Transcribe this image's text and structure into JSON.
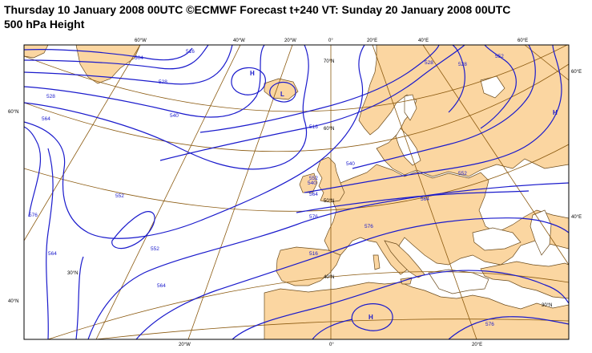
{
  "header": {
    "line1": "Thursday 10 January 2008 00UTC ©ECMWF Forecast t+240 VT: Sunday 20 January 2008 00UTC",
    "line2": "500 hPa Height"
  },
  "colors": {
    "land": "#fbd6a1",
    "sea": "#ffffff",
    "contour": "#1a1acc",
    "graticule": "#8b5a10",
    "coast": "#6b4a1a"
  },
  "top_lon_labels": [
    "60°W",
    "40°W",
    "20°W",
    "0°",
    "20°E",
    "40°E",
    "60°E"
  ],
  "bottom_lon_labels": [
    "20°W",
    "0°",
    "20°E"
  ],
  "left_lat_labels": [
    "60°N",
    "40°N"
  ],
  "right_lat_labels": [
    "60°E",
    "40°E"
  ],
  "inner_lat_labels": [
    "70°N",
    "60°N",
    "50°N",
    "40°N",
    "30°N",
    "30°N"
  ],
  "contour_labels": [
    "504",
    "516",
    "528",
    "528",
    "540",
    "552",
    "564",
    "576",
    "516",
    "540",
    "552",
    "564",
    "576",
    "552",
    "564",
    "540",
    "552",
    "564",
    "576",
    "528",
    "552",
    "576",
    "564",
    "516",
    "528"
  ],
  "pressure_centers": [
    "H",
    "L",
    "H",
    "H"
  ]
}
